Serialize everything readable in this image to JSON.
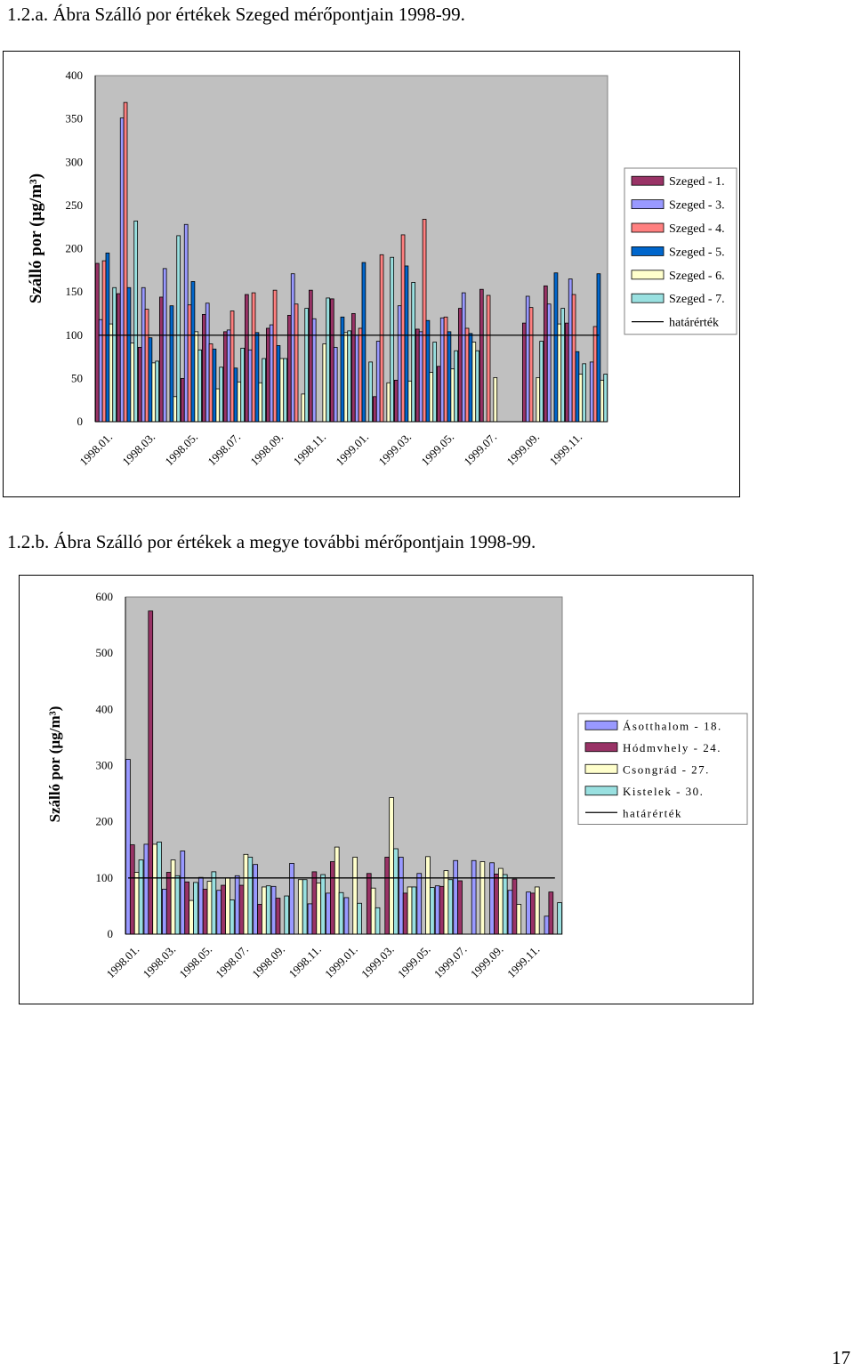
{
  "captions": {
    "a": "1.2.a. Ábra  Szálló por értékek Szeged mérőpontjain 1998-99.",
    "b": "1.2.b. Ábra  Szálló por értékek a megye további mérőpontjain 1998-99."
  },
  "page_number": "17",
  "chart_data": [
    {
      "type": "bar",
      "ylabel": "Szálló por (µg/m³)",
      "ylim": [
        0,
        400
      ],
      "yticks": [
        0,
        50,
        100,
        150,
        200,
        250,
        300,
        350,
        400
      ],
      "grid": false,
      "legend_position": "right",
      "plot_background": "#c0c0c0",
      "x_tick_labels": [
        "1998.01.",
        "1998.03.",
        "1998.05.",
        "1998.07.",
        "1998.09.",
        "1998.11.",
        "1999.01.",
        "1999.03.",
        "1999.05.",
        "1999.07.",
        "1999.09.",
        "1999.11."
      ],
      "categories": [
        "1998.01.",
        "1998.02.",
        "1998.03.",
        "1998.04.",
        "1998.05.",
        "1998.06.",
        "1998.07.",
        "1998.08.",
        "1998.09.",
        "1998.10.",
        "1998.11.",
        "1998.12.",
        "1999.01.",
        "1999.02.",
        "1999.03.",
        "1999.04.",
        "1999.05.",
        "1999.06.",
        "1999.07.",
        "1999.08.",
        "1999.09.",
        "1999.10.",
        "1999.11.",
        "1999.12."
      ],
      "series": [
        {
          "name": "Szeged - 1.",
          "color": "#993366",
          "values": [
            183,
            148,
            86,
            144,
            50,
            124,
            104,
            147,
            108,
            123,
            152,
            142,
            125,
            29,
            48,
            107,
            64,
            131,
            153,
            0,
            114,
            157,
            114,
            0
          ]
        },
        {
          "name": "Szeged - 3.",
          "color": "#9999ff",
          "values": [
            118,
            351,
            155,
            177,
            228,
            137,
            106,
            83,
            112,
            171,
            119,
            86,
            100,
            93,
            134,
            104,
            120,
            149,
            0,
            0,
            145,
            136,
            165,
            69
          ]
        },
        {
          "name": "Szeged - 4.",
          "color": "#ff8080",
          "values": [
            186,
            369,
            130,
            0,
            135,
            90,
            128,
            149,
            152,
            136,
            0,
            0,
            108,
            193,
            216,
            234,
            121,
            108,
            146,
            0,
            132,
            0,
            147,
            110
          ]
        },
        {
          "name": "Szeged - 5.",
          "color": "#0066cc",
          "values": [
            195,
            155,
            97,
            134,
            162,
            84,
            62,
            103,
            88,
            0,
            0,
            121,
            184,
            0,
            180,
            117,
            104,
            102,
            0,
            0,
            0,
            172,
            81,
            171
          ]
        },
        {
          "name": "Szeged - 6.",
          "color": "#ffffcc",
          "values": [
            113,
            91,
            68,
            29,
            104,
            38,
            46,
            45,
            73,
            32,
            90,
            103,
            0,
            45,
            47,
            57,
            61,
            92,
            51,
            0,
            51,
            113,
            55,
            48
          ]
        },
        {
          "name": "Szeged - 7.",
          "color": "#99e0e0",
          "values": [
            155,
            232,
            70,
            215,
            83,
            63,
            85,
            73,
            73,
            131,
            143,
            105,
            69,
            190,
            161,
            92,
            82,
            82,
            0,
            0,
            93,
            131,
            67,
            55
          ]
        }
      ],
      "threshold": {
        "name": "határérték",
        "value": 100
      }
    },
    {
      "type": "bar",
      "ylabel": "Szálló por (µg/m³)",
      "ylim": [
        0,
        600
      ],
      "yticks": [
        0,
        100,
        200,
        300,
        400,
        500,
        600
      ],
      "grid": false,
      "legend_position": "right",
      "plot_background": "#c0c0c0",
      "x_tick_labels": [
        "1998.01.",
        "1998.03.",
        "1998.05.",
        "1998.07.",
        "1998.09.",
        "1998.11.",
        "1999.01.",
        "1999.03.",
        "1999.05.",
        "1999.07.",
        "1999.09.",
        "1999.11."
      ],
      "categories": [
        "1998.01.",
        "1998.02.",
        "1998.03.",
        "1998.04.",
        "1998.05.",
        "1998.06.",
        "1998.07.",
        "1998.08.",
        "1998.09.",
        "1998.10.",
        "1998.11.",
        "1998.12.",
        "1999.01.",
        "1999.02.",
        "1999.03.",
        "1999.04.",
        "1999.05.",
        "1999.06.",
        "1999.07.",
        "1999.08.",
        "1999.09.",
        "1999.10.",
        "1999.11.",
        "1999.12."
      ],
      "series": [
        {
          "name": "Ásotthalom - 18.",
          "color": "#9999ff",
          "values": [
            311,
            160,
            80,
            148,
            101,
            78,
            104,
            124,
            85,
            126,
            54,
            73,
            65,
            0,
            0,
            137,
            108,
            86,
            131,
            131,
            127,
            78,
            75,
            32
          ]
        },
        {
          "name": "Hódmvhely - 24.",
          "color": "#993366",
          "values": [
            159,
            575,
            110,
            93,
            80,
            87,
            87,
            53,
            64,
            0,
            111,
            129,
            0,
            108,
            137,
            73,
            0,
            85,
            95,
            0,
            107,
            98,
            73,
            75
          ]
        },
        {
          "name": "Csongrád - 27.",
          "color": "#ffffcc",
          "values": [
            110,
            160,
            132,
            60,
            94,
            100,
            142,
            84,
            0,
            97,
            91,
            155,
            137,
            82,
            243,
            84,
            138,
            113,
            0,
            129,
            117,
            53,
            84,
            0
          ]
        },
        {
          "name": "Kistelek - 30.",
          "color": "#99e0e0",
          "values": [
            132,
            164,
            104,
            92,
            111,
            61,
            137,
            86,
            68,
            97,
            106,
            74,
            55,
            47,
            152,
            84,
            83,
            97,
            0,
            0,
            106,
            0,
            0,
            56
          ]
        }
      ],
      "threshold": {
        "name": "határérték",
        "value": 100
      }
    }
  ]
}
